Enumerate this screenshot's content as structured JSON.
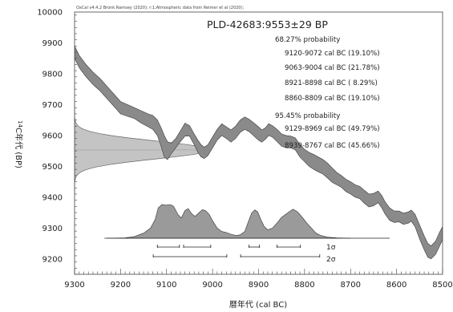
{
  "chart_data": {
    "type": "area",
    "header": "OxCal v4.4.2 Bronk Ramsey (2020); r:1;Atmospheric data from Reimer et al (2020);",
    "title": "PLD-42683:9553±29 BP",
    "xlabel": "暦年代 (cal BC)",
    "ylabel_sup": "14",
    "ylabel": "C年代 (BP)",
    "xlim": [
      9300,
      8500
    ],
    "ylim": [
      9150,
      10000
    ],
    "xticks": [
      9300,
      9200,
      9100,
      9000,
      8900,
      8800,
      8700,
      8600,
      8500
    ],
    "yticks": [
      9200,
      9300,
      9400,
      9500,
      9600,
      9700,
      9800,
      9900,
      10000
    ],
    "grid": false,
    "probability_68": {
      "label": "68.27% probability",
      "ranges": [
        {
          "from": 9120,
          "to": 9072,
          "text": "9120-9072 cal BC (19.10%)"
        },
        {
          "from": 9063,
          "to": 9004,
          "text": "9063-9004 cal BC (21.78%)"
        },
        {
          "from": 8921,
          "to": 8898,
          "text": "8921-8898 cal BC ( 8.29%)"
        },
        {
          "from": 8860,
          "to": 8809,
          "text": "8860-8809 cal BC (19.10%)"
        }
      ],
      "sigma_label": "1σ"
    },
    "probability_95": {
      "label": "95.45% probability",
      "ranges": [
        {
          "from": 9129,
          "to": 8969,
          "text": "9129-8969 cal BC (49.79%)"
        },
        {
          "from": 8939,
          "to": 8767,
          "text": "8939-8767 cal BC (45.66%)"
        }
      ],
      "sigma_label": "2σ"
    },
    "radiocarbon": {
      "mean": 9553,
      "sigma": 29
    },
    "calibration_curve": [
      {
        "x": 9300,
        "lo": 9850,
        "hi": 9890
      },
      {
        "x": 9290,
        "lo": 9820,
        "hi": 9860
      },
      {
        "x": 9275,
        "lo": 9790,
        "hi": 9830
      },
      {
        "x": 9260,
        "lo": 9765,
        "hi": 9805
      },
      {
        "x": 9245,
        "lo": 9745,
        "hi": 9785
      },
      {
        "x": 9230,
        "lo": 9720,
        "hi": 9760
      },
      {
        "x": 9215,
        "lo": 9695,
        "hi": 9735
      },
      {
        "x": 9200,
        "lo": 9670,
        "hi": 9710
      },
      {
        "x": 9185,
        "lo": 9662,
        "hi": 9700
      },
      {
        "x": 9170,
        "lo": 9655,
        "hi": 9690
      },
      {
        "x": 9155,
        "lo": 9640,
        "hi": 9680
      },
      {
        "x": 9140,
        "lo": 9628,
        "hi": 9670
      },
      {
        "x": 9130,
        "lo": 9620,
        "hi": 9665
      },
      {
        "x": 9120,
        "lo": 9600,
        "hi": 9650
      },
      {
        "x": 9112,
        "lo": 9565,
        "hi": 9625
      },
      {
        "x": 9105,
        "lo": 9530,
        "hi": 9600
      },
      {
        "x": 9098,
        "lo": 9522,
        "hi": 9580
      },
      {
        "x": 9090,
        "lo": 9540,
        "hi": 9575
      },
      {
        "x": 9080,
        "lo": 9560,
        "hi": 9590
      },
      {
        "x": 9070,
        "lo": 9580,
        "hi": 9615
      },
      {
        "x": 9060,
        "lo": 9598,
        "hi": 9640
      },
      {
        "x": 9050,
        "lo": 9598,
        "hi": 9632
      },
      {
        "x": 9040,
        "lo": 9570,
        "hi": 9605
      },
      {
        "x": 9032,
        "lo": 9545,
        "hi": 9585
      },
      {
        "x": 9025,
        "lo": 9530,
        "hi": 9570
      },
      {
        "x": 9018,
        "lo": 9525,
        "hi": 9562
      },
      {
        "x": 9010,
        "lo": 9535,
        "hi": 9570
      },
      {
        "x": 9000,
        "lo": 9560,
        "hi": 9595
      },
      {
        "x": 8990,
        "lo": 9585,
        "hi": 9620
      },
      {
        "x": 8980,
        "lo": 9600,
        "hi": 9638
      },
      {
        "x": 8970,
        "lo": 9590,
        "hi": 9628
      },
      {
        "x": 8960,
        "lo": 9578,
        "hi": 9618
      },
      {
        "x": 8950,
        "lo": 9590,
        "hi": 9630
      },
      {
        "x": 8940,
        "lo": 9610,
        "hi": 9650
      },
      {
        "x": 8930,
        "lo": 9620,
        "hi": 9660
      },
      {
        "x": 8920,
        "lo": 9612,
        "hi": 9652
      },
      {
        "x": 8910,
        "lo": 9598,
        "hi": 9640
      },
      {
        "x": 8900,
        "lo": 9585,
        "hi": 9628
      },
      {
        "x": 8893,
        "lo": 9578,
        "hi": 9618
      },
      {
        "x": 8885,
        "lo": 9588,
        "hi": 9625
      },
      {
        "x": 8878,
        "lo": 9600,
        "hi": 9638
      },
      {
        "x": 8870,
        "lo": 9595,
        "hi": 9632
      },
      {
        "x": 8860,
        "lo": 9580,
        "hi": 9620
      },
      {
        "x": 8850,
        "lo": 9565,
        "hi": 9605
      },
      {
        "x": 8840,
        "lo": 9560,
        "hi": 9600
      },
      {
        "x": 8830,
        "lo": 9560,
        "hi": 9598
      },
      {
        "x": 8820,
        "lo": 9553,
        "hi": 9592
      },
      {
        "x": 8810,
        "lo": 9530,
        "hi": 9570
      },
      {
        "x": 8800,
        "lo": 9515,
        "hi": 9555
      },
      {
        "x": 8790,
        "lo": 9500,
        "hi": 9545
      },
      {
        "x": 8780,
        "lo": 9490,
        "hi": 9538
      },
      {
        "x": 8770,
        "lo": 9482,
        "hi": 9530
      },
      {
        "x": 8760,
        "lo": 9475,
        "hi": 9522
      },
      {
        "x": 8750,
        "lo": 9462,
        "hi": 9510
      },
      {
        "x": 8740,
        "lo": 9448,
        "hi": 9495
      },
      {
        "x": 8730,
        "lo": 9440,
        "hi": 9480
      },
      {
        "x": 8720,
        "lo": 9432,
        "hi": 9470
      },
      {
        "x": 8710,
        "lo": 9418,
        "hi": 9458
      },
      {
        "x": 8700,
        "lo": 9410,
        "hi": 9450
      },
      {
        "x": 8690,
        "lo": 9400,
        "hi": 9440
      },
      {
        "x": 8680,
        "lo": 9395,
        "hi": 9435
      },
      {
        "x": 8670,
        "lo": 9380,
        "hi": 9422
      },
      {
        "x": 8660,
        "lo": 9368,
        "hi": 9410
      },
      {
        "x": 8650,
        "lo": 9372,
        "hi": 9412
      },
      {
        "x": 8640,
        "lo": 9382,
        "hi": 9420
      },
      {
        "x": 8632,
        "lo": 9365,
        "hi": 9405
      },
      {
        "x": 8625,
        "lo": 9345,
        "hi": 9385
      },
      {
        "x": 8615,
        "lo": 9325,
        "hi": 9365
      },
      {
        "x": 8605,
        "lo": 9318,
        "hi": 9355
      },
      {
        "x": 8595,
        "lo": 9320,
        "hi": 9355
      },
      {
        "x": 8585,
        "lo": 9312,
        "hi": 9348
      },
      {
        "x": 8575,
        "lo": 9315,
        "hi": 9352
      },
      {
        "x": 8568,
        "lo": 9322,
        "hi": 9358
      },
      {
        "x": 8560,
        "lo": 9305,
        "hi": 9345
      },
      {
        "x": 8550,
        "lo": 9265,
        "hi": 9310
      },
      {
        "x": 8540,
        "lo": 9230,
        "hi": 9275
      },
      {
        "x": 8532,
        "lo": 9205,
        "hi": 9250
      },
      {
        "x": 8525,
        "lo": 9200,
        "hi": 9242
      },
      {
        "x": 8515,
        "lo": 9215,
        "hi": 9258
      },
      {
        "x": 8507,
        "lo": 9240,
        "hi": 9285
      },
      {
        "x": 8500,
        "lo": 9262,
        "hi": 9305
      }
    ],
    "calibrated_distribution": [
      {
        "x": 9230,
        "p": 0.0
      },
      {
        "x": 9190,
        "p": 0.01
      },
      {
        "x": 9170,
        "p": 0.05
      },
      {
        "x": 9150,
        "p": 0.15
      },
      {
        "x": 9135,
        "p": 0.3
      },
      {
        "x": 9125,
        "p": 0.55
      },
      {
        "x": 9118,
        "p": 0.9
      },
      {
        "x": 9110,
        "p": 1.0
      },
      {
        "x": 9102,
        "p": 0.98
      },
      {
        "x": 9092,
        "p": 1.0
      },
      {
        "x": 9085,
        "p": 0.95
      },
      {
        "x": 9075,
        "p": 0.7
      },
      {
        "x": 9068,
        "p": 0.6
      },
      {
        "x": 9060,
        "p": 0.82
      },
      {
        "x": 9053,
        "p": 0.88
      },
      {
        "x": 9045,
        "p": 0.72
      },
      {
        "x": 9038,
        "p": 0.65
      },
      {
        "x": 9030,
        "p": 0.75
      },
      {
        "x": 9022,
        "p": 0.85
      },
      {
        "x": 9015,
        "p": 0.82
      },
      {
        "x": 9007,
        "p": 0.7
      },
      {
        "x": 9000,
        "p": 0.52
      },
      {
        "x": 8990,
        "p": 0.3
      },
      {
        "x": 8980,
        "p": 0.2
      },
      {
        "x": 8970,
        "p": 0.17
      },
      {
        "x": 8960,
        "p": 0.12
      },
      {
        "x": 8950,
        "p": 0.08
      },
      {
        "x": 8940,
        "p": 0.1
      },
      {
        "x": 8930,
        "p": 0.2
      },
      {
        "x": 8922,
        "p": 0.5
      },
      {
        "x": 8915,
        "p": 0.75
      },
      {
        "x": 8908,
        "p": 0.84
      },
      {
        "x": 8902,
        "p": 0.78
      },
      {
        "x": 8895,
        "p": 0.55
      },
      {
        "x": 8888,
        "p": 0.35
      },
      {
        "x": 8880,
        "p": 0.25
      },
      {
        "x": 8870,
        "p": 0.3
      },
      {
        "x": 8860,
        "p": 0.45
      },
      {
        "x": 8850,
        "p": 0.62
      },
      {
        "x": 8840,
        "p": 0.72
      },
      {
        "x": 8830,
        "p": 0.82
      },
      {
        "x": 8825,
        "p": 0.86
      },
      {
        "x": 8815,
        "p": 0.78
      },
      {
        "x": 8805,
        "p": 0.62
      },
      {
        "x": 8795,
        "p": 0.45
      },
      {
        "x": 8785,
        "p": 0.3
      },
      {
        "x": 8775,
        "p": 0.15
      },
      {
        "x": 8765,
        "p": 0.08
      },
      {
        "x": 8750,
        "p": 0.03
      },
      {
        "x": 8730,
        "p": 0.01
      },
      {
        "x": 8700,
        "p": 0.0
      }
    ],
    "baseline_range": [
      9235,
      8615
    ],
    "colors": {
      "curve_fill": "#8a8a8a",
      "curve_stroke": "#3a3a3a",
      "gaussian_fill": "#c4c4c4",
      "distribution_fill": "#9a9a9a",
      "frame": "#444444"
    }
  }
}
